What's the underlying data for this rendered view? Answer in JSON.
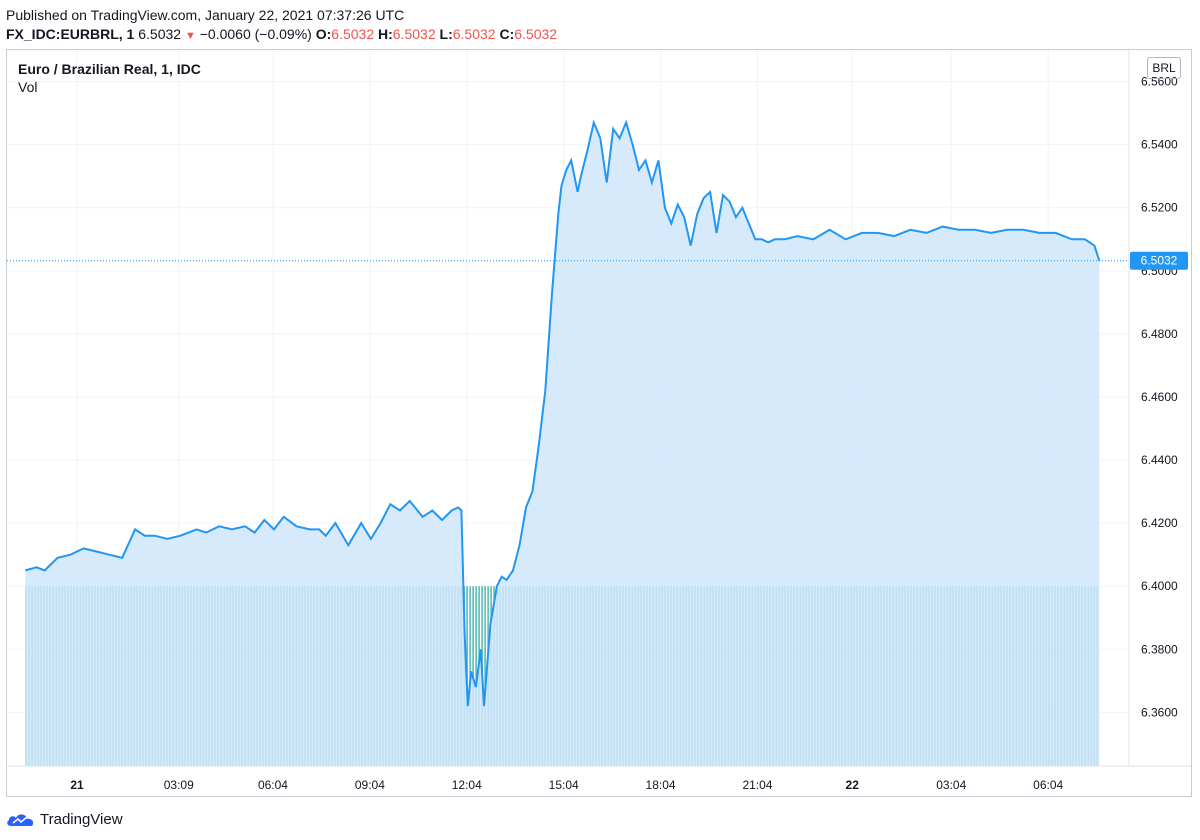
{
  "header": {
    "published": "Published on TradingView.com, January 22, 2021 07:37:26 UTC",
    "symbol": "FX_IDC:EURBRL, 1",
    "last": "6.5032",
    "change_arrow": "▼",
    "change": "−0.0060 (−0.09%)",
    "o_label": "O:",
    "o_value": "6.5032",
    "h_label": "H:",
    "h_value": "6.5032",
    "l_label": "L:",
    "l_value": "6.5032",
    "c_label": "C:",
    "c_value": "6.5032"
  },
  "chart_title": "Euro / Brazilian Real, 1, IDC",
  "vol_label": "Vol",
  "currency": "BRL",
  "footer_brand": "TradingView",
  "colors": {
    "line": "#2196f3",
    "area": "#cfe6fb",
    "volume": "#26a69a",
    "price_tag": "#2196f3",
    "down": "#ef5350",
    "grid": "#f0f3fa"
  },
  "chart_data": {
    "type": "area",
    "title": "Euro / Brazilian Real, 1, IDC",
    "xlabel": "",
    "ylabel": "",
    "ylim": [
      6.343,
      6.57
    ],
    "y_ticks": [
      "6.3600",
      "6.3800",
      "6.4000",
      "6.4200",
      "6.4400",
      "6.4600",
      "6.4800",
      "6.5000",
      "6.5200",
      "6.5400",
      "6.5600"
    ],
    "x_ticks": [
      {
        "label": "21",
        "bold": true,
        "hours": 0
      },
      {
        "label": "03:09",
        "bold": false,
        "hours": 3.15
      },
      {
        "label": "06:04",
        "bold": false,
        "hours": 6.067
      },
      {
        "label": "09:04",
        "bold": false,
        "hours": 9.067
      },
      {
        "label": "12:04",
        "bold": false,
        "hours": 12.067
      },
      {
        "label": "15:04",
        "bold": false,
        "hours": 15.067
      },
      {
        "label": "18:04",
        "bold": false,
        "hours": 18.067
      },
      {
        "label": "21:04",
        "bold": false,
        "hours": 21.067
      },
      {
        "label": "22",
        "bold": true,
        "hours": 24
      },
      {
        "label": "03:04",
        "bold": false,
        "hours": 27.067
      },
      {
        "label": "06:04",
        "bold": false,
        "hours": 30.067
      }
    ],
    "last_price": "6.5032",
    "series": [
      {
        "x": [
          -1.6,
          -1.25,
          -1.0,
          -0.6,
          -0.2,
          0.2,
          0.6,
          1.0,
          1.4,
          1.8,
          2.1,
          2.4,
          2.8,
          3.2,
          3.7,
          4.0,
          4.4,
          4.8,
          5.2,
          5.5,
          5.8,
          6.1,
          6.4,
          6.8,
          7.2,
          7.5,
          7.7,
          8.0,
          8.4,
          8.8,
          9.1,
          9.4,
          9.7,
          10.0,
          10.3,
          10.7,
          11.0,
          11.3,
          11.6,
          11.8,
          11.9,
          12.0,
          12.1,
          12.2,
          12.35,
          12.5,
          12.6,
          12.7,
          12.8,
          13.0,
          13.15,
          13.3,
          13.5,
          13.7,
          13.9,
          14.1,
          14.3,
          14.5,
          14.7,
          14.9,
          15.0,
          15.15,
          15.3,
          15.5,
          15.6,
          15.8,
          16.0,
          16.2,
          16.4,
          16.6,
          16.8,
          17.0,
          17.2,
          17.4,
          17.6,
          17.8,
          18.0,
          18.2,
          18.4,
          18.6,
          18.8,
          19.0,
          19.2,
          19.4,
          19.6,
          19.8,
          20.0,
          20.2,
          20.4,
          20.6,
          20.8,
          21.0,
          21.2,
          21.4,
          21.6,
          21.9,
          22.3,
          22.8,
          23.3,
          23.8,
          24.3,
          24.8,
          25.3,
          25.8,
          26.3,
          26.8,
          27.3,
          27.8,
          28.3,
          28.8,
          29.3,
          29.8,
          30.3,
          30.8,
          31.2,
          31.5,
          31.65
        ],
        "values": [
          6.405,
          6.406,
          6.405,
          6.409,
          6.41,
          6.412,
          6.411,
          6.41,
          6.409,
          6.418,
          6.416,
          6.416,
          6.415,
          6.416,
          6.418,
          6.417,
          6.419,
          6.418,
          6.419,
          6.417,
          6.421,
          6.418,
          6.422,
          6.419,
          6.418,
          6.418,
          6.416,
          6.42,
          6.413,
          6.42,
          6.415,
          6.42,
          6.426,
          6.424,
          6.427,
          6.422,
          6.424,
          6.421,
          6.424,
          6.425,
          6.424,
          6.385,
          6.362,
          6.373,
          6.368,
          6.38,
          6.362,
          6.375,
          6.388,
          6.4,
          6.403,
          6.402,
          6.405,
          6.413,
          6.425,
          6.43,
          6.445,
          6.462,
          6.492,
          6.518,
          6.527,
          6.532,
          6.535,
          6.525,
          6.53,
          6.538,
          6.547,
          6.542,
          6.528,
          6.545,
          6.542,
          6.547,
          6.54,
          6.532,
          6.535,
          6.528,
          6.535,
          6.52,
          6.515,
          6.521,
          6.517,
          6.508,
          6.518,
          6.523,
          6.525,
          6.512,
          6.524,
          6.522,
          6.517,
          6.52,
          6.515,
          6.51,
          6.51,
          6.509,
          6.51,
          6.51,
          6.511,
          6.51,
          6.513,
          6.51,
          6.512,
          6.512,
          6.511,
          6.513,
          6.512,
          6.514,
          6.513,
          6.513,
          6.512,
          6.513,
          6.513,
          6.512,
          6.512,
          6.51,
          6.51,
          6.508,
          6.5032
        ]
      }
    ],
    "volume": {
      "value_uniform": true,
      "baseline": 6.4
    }
  }
}
